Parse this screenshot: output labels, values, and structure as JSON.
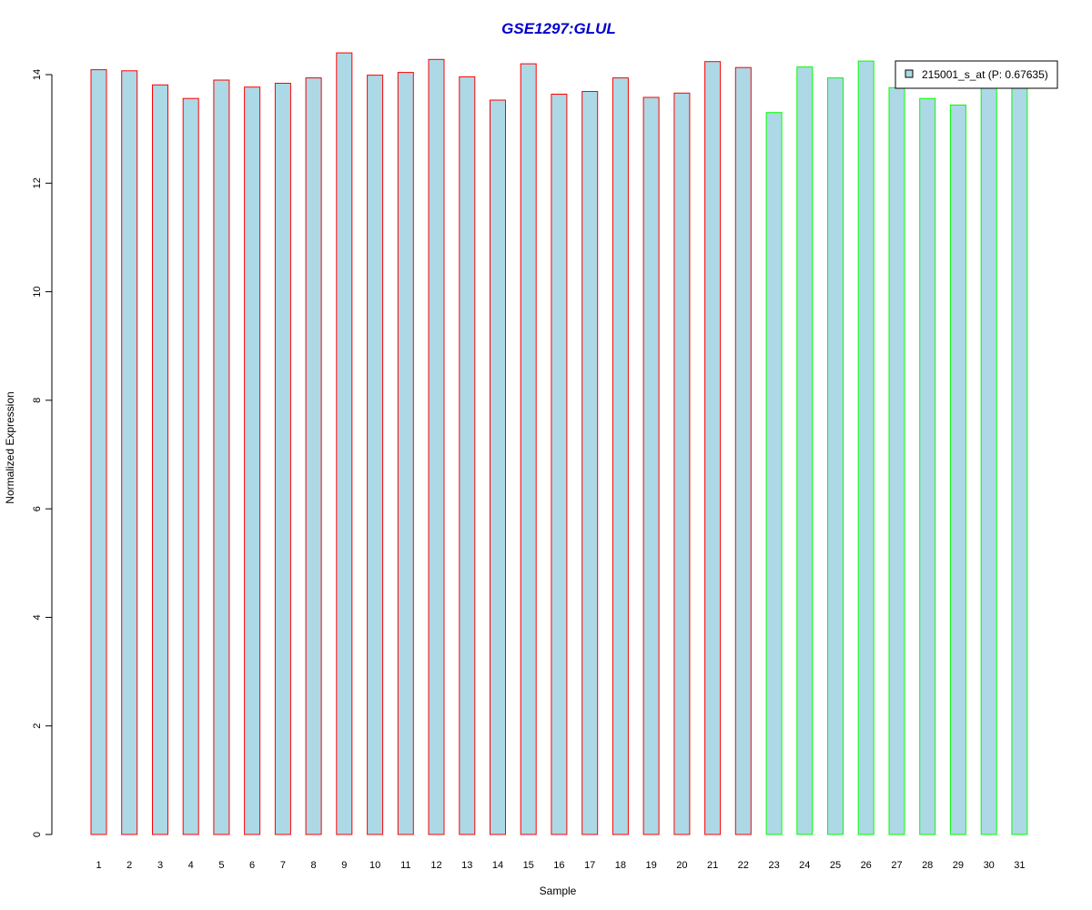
{
  "chart_data": {
    "type": "bar",
    "title": "GSE1297:GLUL",
    "xlabel": "Sample",
    "ylabel": "Normalized Expression",
    "ylim": [
      0,
      14.4
    ],
    "y_ticks": [
      0,
      2,
      4,
      6,
      8,
      10,
      12,
      14
    ],
    "categories": [
      "1",
      "2",
      "3",
      "4",
      "5",
      "6",
      "7",
      "8",
      "9",
      "10",
      "11",
      "12",
      "13",
      "14",
      "15",
      "16",
      "17",
      "18",
      "19",
      "20",
      "21",
      "22",
      "23",
      "24",
      "25",
      "26",
      "27",
      "28",
      "29",
      "30",
      "31"
    ],
    "series": [
      {
        "name": "215001_s_at (P: 0.67635)",
        "values": [
          14.09,
          14.07,
          13.81,
          13.56,
          13.9,
          13.77,
          13.84,
          13.94,
          14.4,
          13.99,
          14.04,
          14.28,
          13.96,
          13.53,
          14.2,
          13.64,
          13.69,
          13.94,
          13.58,
          13.66,
          14.24,
          14.13,
          13.3,
          14.14,
          13.94,
          14.25,
          13.76,
          13.56,
          13.44,
          13.79,
          13.79
        ],
        "groups": [
          "a",
          "a",
          "a",
          "a",
          "a",
          "a",
          "a",
          "a",
          "a",
          "a",
          "a",
          "a",
          "a",
          "a",
          "a",
          "a",
          "a",
          "a",
          "a",
          "a",
          "a",
          "a",
          "b",
          "b",
          "b",
          "b",
          "b",
          "b",
          "b",
          "b",
          "b"
        ]
      }
    ],
    "colors": {
      "bar_fill": "#add8e6",
      "group_a_border": "#ff0000",
      "group_b_border": "#00ff00",
      "title": "#0000cc"
    },
    "legend": {
      "placement": "top-right",
      "label": "215001_s_at (P: 0.67635)"
    },
    "grid": false
  }
}
